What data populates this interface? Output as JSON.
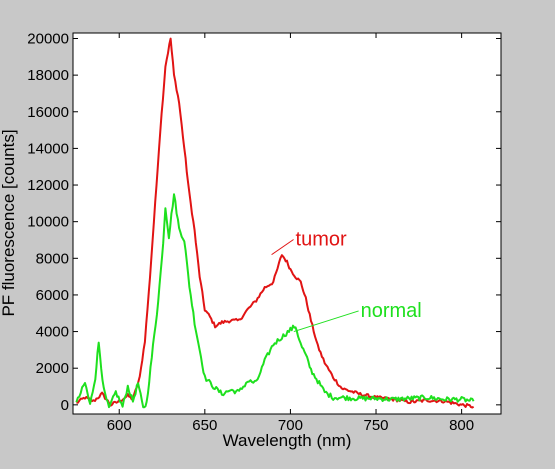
{
  "chart_data": {
    "type": "line",
    "xlabel": "Wavelength (nm)",
    "ylabel": "PF fluorescence [counts]",
    "xlim": [
      573,
      823
    ],
    "ylim": [
      -500,
      20300
    ],
    "xticks": [
      600,
      650,
      700,
      750,
      800
    ],
    "yticks": [
      0,
      2000,
      4000,
      6000,
      8000,
      10000,
      12000,
      14000,
      16000,
      18000,
      20000
    ],
    "grid": false,
    "colors": {
      "figure_bg": "#c8c8c8",
      "axes_bg": "#ffffff",
      "axis": "#000000"
    },
    "series": [
      {
        "name": "tumor",
        "color": "#e11414",
        "x": [
          575,
          580,
          585,
          590,
          595,
          600,
          605,
          608,
          612,
          615,
          618,
          621,
          624,
          627,
          630,
          632,
          635,
          638,
          641,
          644,
          647,
          650,
          653,
          656,
          660,
          665,
          670,
          675,
          680,
          685,
          690,
          695,
          698,
          700,
          703,
          706,
          709,
          712,
          716,
          720,
          725,
          730,
          740,
          750,
          760,
          770,
          780,
          790,
          800,
          807
        ],
        "y": [
          100,
          400,
          200,
          600,
          0,
          200,
          500,
          300,
          1500,
          3500,
          7000,
          11000,
          15000,
          18500,
          20000,
          18000,
          16500,
          14000,
          11500,
          9500,
          7000,
          5200,
          4800,
          4300,
          4500,
          4600,
          4600,
          5200,
          5700,
          6400,
          6700,
          8200,
          7800,
          7400,
          7000,
          6700,
          5800,
          4600,
          3200,
          2300,
          1500,
          900,
          600,
          400,
          300,
          150,
          250,
          200,
          0,
          -100
        ]
      },
      {
        "name": "normal",
        "color": "#1ee01e",
        "x": [
          575,
          580,
          583,
          586,
          588,
          591,
          594,
          598,
          602,
          605,
          608,
          611,
          614,
          616,
          619,
          622,
          625,
          627,
          629,
          632,
          635,
          638,
          641,
          644,
          647,
          650,
          655,
          660,
          665,
          670,
          675,
          680,
          685,
          690,
          695,
          700,
          703,
          706,
          709,
          712,
          716,
          720,
          725,
          730,
          740,
          750,
          760,
          770,
          780,
          790,
          800,
          807
        ],
        "y": [
          100,
          1200,
          0,
          1500,
          3400,
          800,
          -200,
          700,
          -100,
          1000,
          200,
          1200,
          -200,
          100,
          2600,
          5000,
          8000,
          10800,
          9200,
          11500,
          9600,
          9000,
          6500,
          4500,
          3000,
          1500,
          1000,
          600,
          800,
          700,
          1300,
          1200,
          2400,
          3300,
          3700,
          4100,
          4300,
          3300,
          2700,
          1900,
          1300,
          700,
          400,
          400,
          350,
          350,
          300,
          350,
          400,
          300,
          300,
          200
        ]
      }
    ],
    "annotations": [
      {
        "text": "tumor",
        "color": "#e11414",
        "x": 703,
        "y": 8700,
        "arrow_to": [
          689,
          8200
        ]
      },
      {
        "text": "normal",
        "color": "#1ee01e",
        "x": 741,
        "y": 4800,
        "arrow_to": [
          702,
          4000
        ]
      }
    ]
  }
}
